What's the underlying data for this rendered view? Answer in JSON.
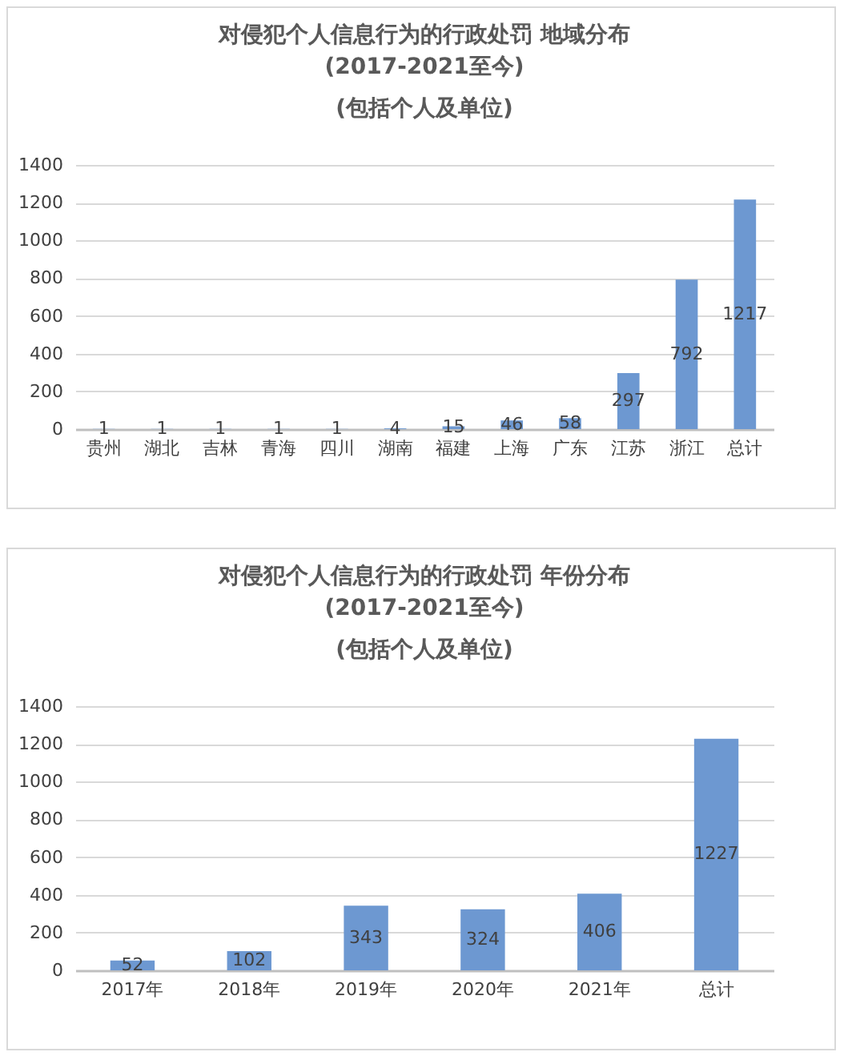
{
  "chart_data": [
    {
      "type": "bar",
      "title": "对侵犯个人信息行为的行政处罚 地域分布",
      "subtitle": "(2017-2021至今)\n(包括个人及单位)",
      "categories": [
        "贵州",
        "湖北",
        "吉林",
        "青海",
        "四川",
        "湖南",
        "福建",
        "上海",
        "广东",
        "江苏",
        "浙江",
        "总计"
      ],
      "values": [
        1,
        1,
        1,
        1,
        1,
        4,
        15,
        46,
        58,
        297,
        792,
        1217
      ],
      "color": "#6d98d1",
      "ylim": [
        0,
        1400
      ],
      "yticks": [
        0,
        200,
        400,
        600,
        800,
        1000,
        1200,
        1400
      ],
      "grid": "y",
      "data_labels": true
    },
    {
      "type": "bar",
      "title": "对侵犯个人信息行为的行政处罚 年份分布",
      "subtitle": "(2017-2021至今)\n(包括个人及单位)",
      "categories": [
        "2017年",
        "2018年",
        "2019年",
        "2020年",
        "2021年",
        "总计"
      ],
      "values": [
        52,
        102,
        343,
        324,
        406,
        1227
      ],
      "color": "#6d98d1",
      "ylim": [
        0,
        1400
      ],
      "yticks": [
        0,
        200,
        400,
        600,
        800,
        1000,
        1200,
        1400
      ],
      "grid": "y",
      "data_labels": true
    }
  ]
}
